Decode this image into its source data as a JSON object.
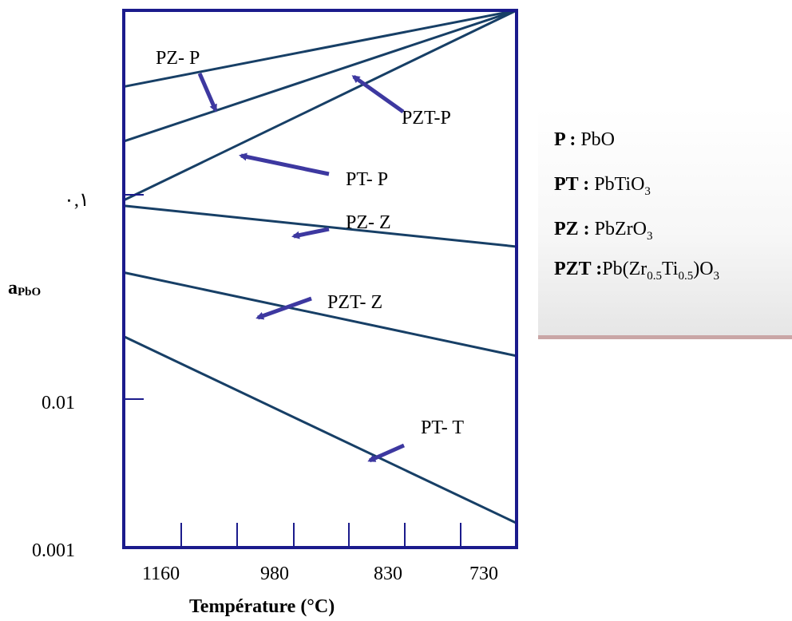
{
  "chart_data": {
    "type": "line",
    "xlabel": "Température (°C)",
    "ylabel_main": "a",
    "ylabel_sub": "PbO",
    "x_ticks": [
      "1160",
      "980",
      "830",
      "730"
    ],
    "y_ticks": [
      "۰,۱",
      "0.01",
      "0.001"
    ],
    "y_scale": "log",
    "series": [
      {
        "name": "PZ- P",
        "x": [
          1245,
          730
        ],
        "y": [
          0.38,
          1.0
        ]
      },
      {
        "name": "PZT-P",
        "x": [
          1245,
          730
        ],
        "y": [
          0.19,
          1.0
        ]
      },
      {
        "name": "PT- P",
        "x": [
          1245,
          730
        ],
        "y": [
          0.09,
          1.0
        ]
      },
      {
        "name": "PZ- Z",
        "x": [
          1245,
          730
        ],
        "y": [
          0.084,
          0.05
        ]
      },
      {
        "name": "PZT- Z",
        "x": [
          1245,
          730
        ],
        "y": [
          0.036,
          0.0125
        ]
      },
      {
        "name": "PT- T",
        "x": [
          1245,
          730
        ],
        "y": [
          0.016,
          0.0015
        ]
      }
    ]
  },
  "legend": [
    {
      "key": "P :",
      "value": "PbO"
    },
    {
      "key": "PT :",
      "value": "PbTiO",
      "sub": "3"
    },
    {
      "key": "PZ :",
      "value": "PbZrO",
      "sub": "3"
    },
    {
      "key": "PZT :",
      "value": "Pb(Zr",
      "sub1": "0.5",
      "mid": "Ti",
      "sub2": "0.5",
      "end": ")O",
      "sub3": "3"
    }
  ],
  "colors": {
    "line": "#173f66",
    "arrow": "#3d38a0",
    "frame": "#1b1b8c"
  }
}
